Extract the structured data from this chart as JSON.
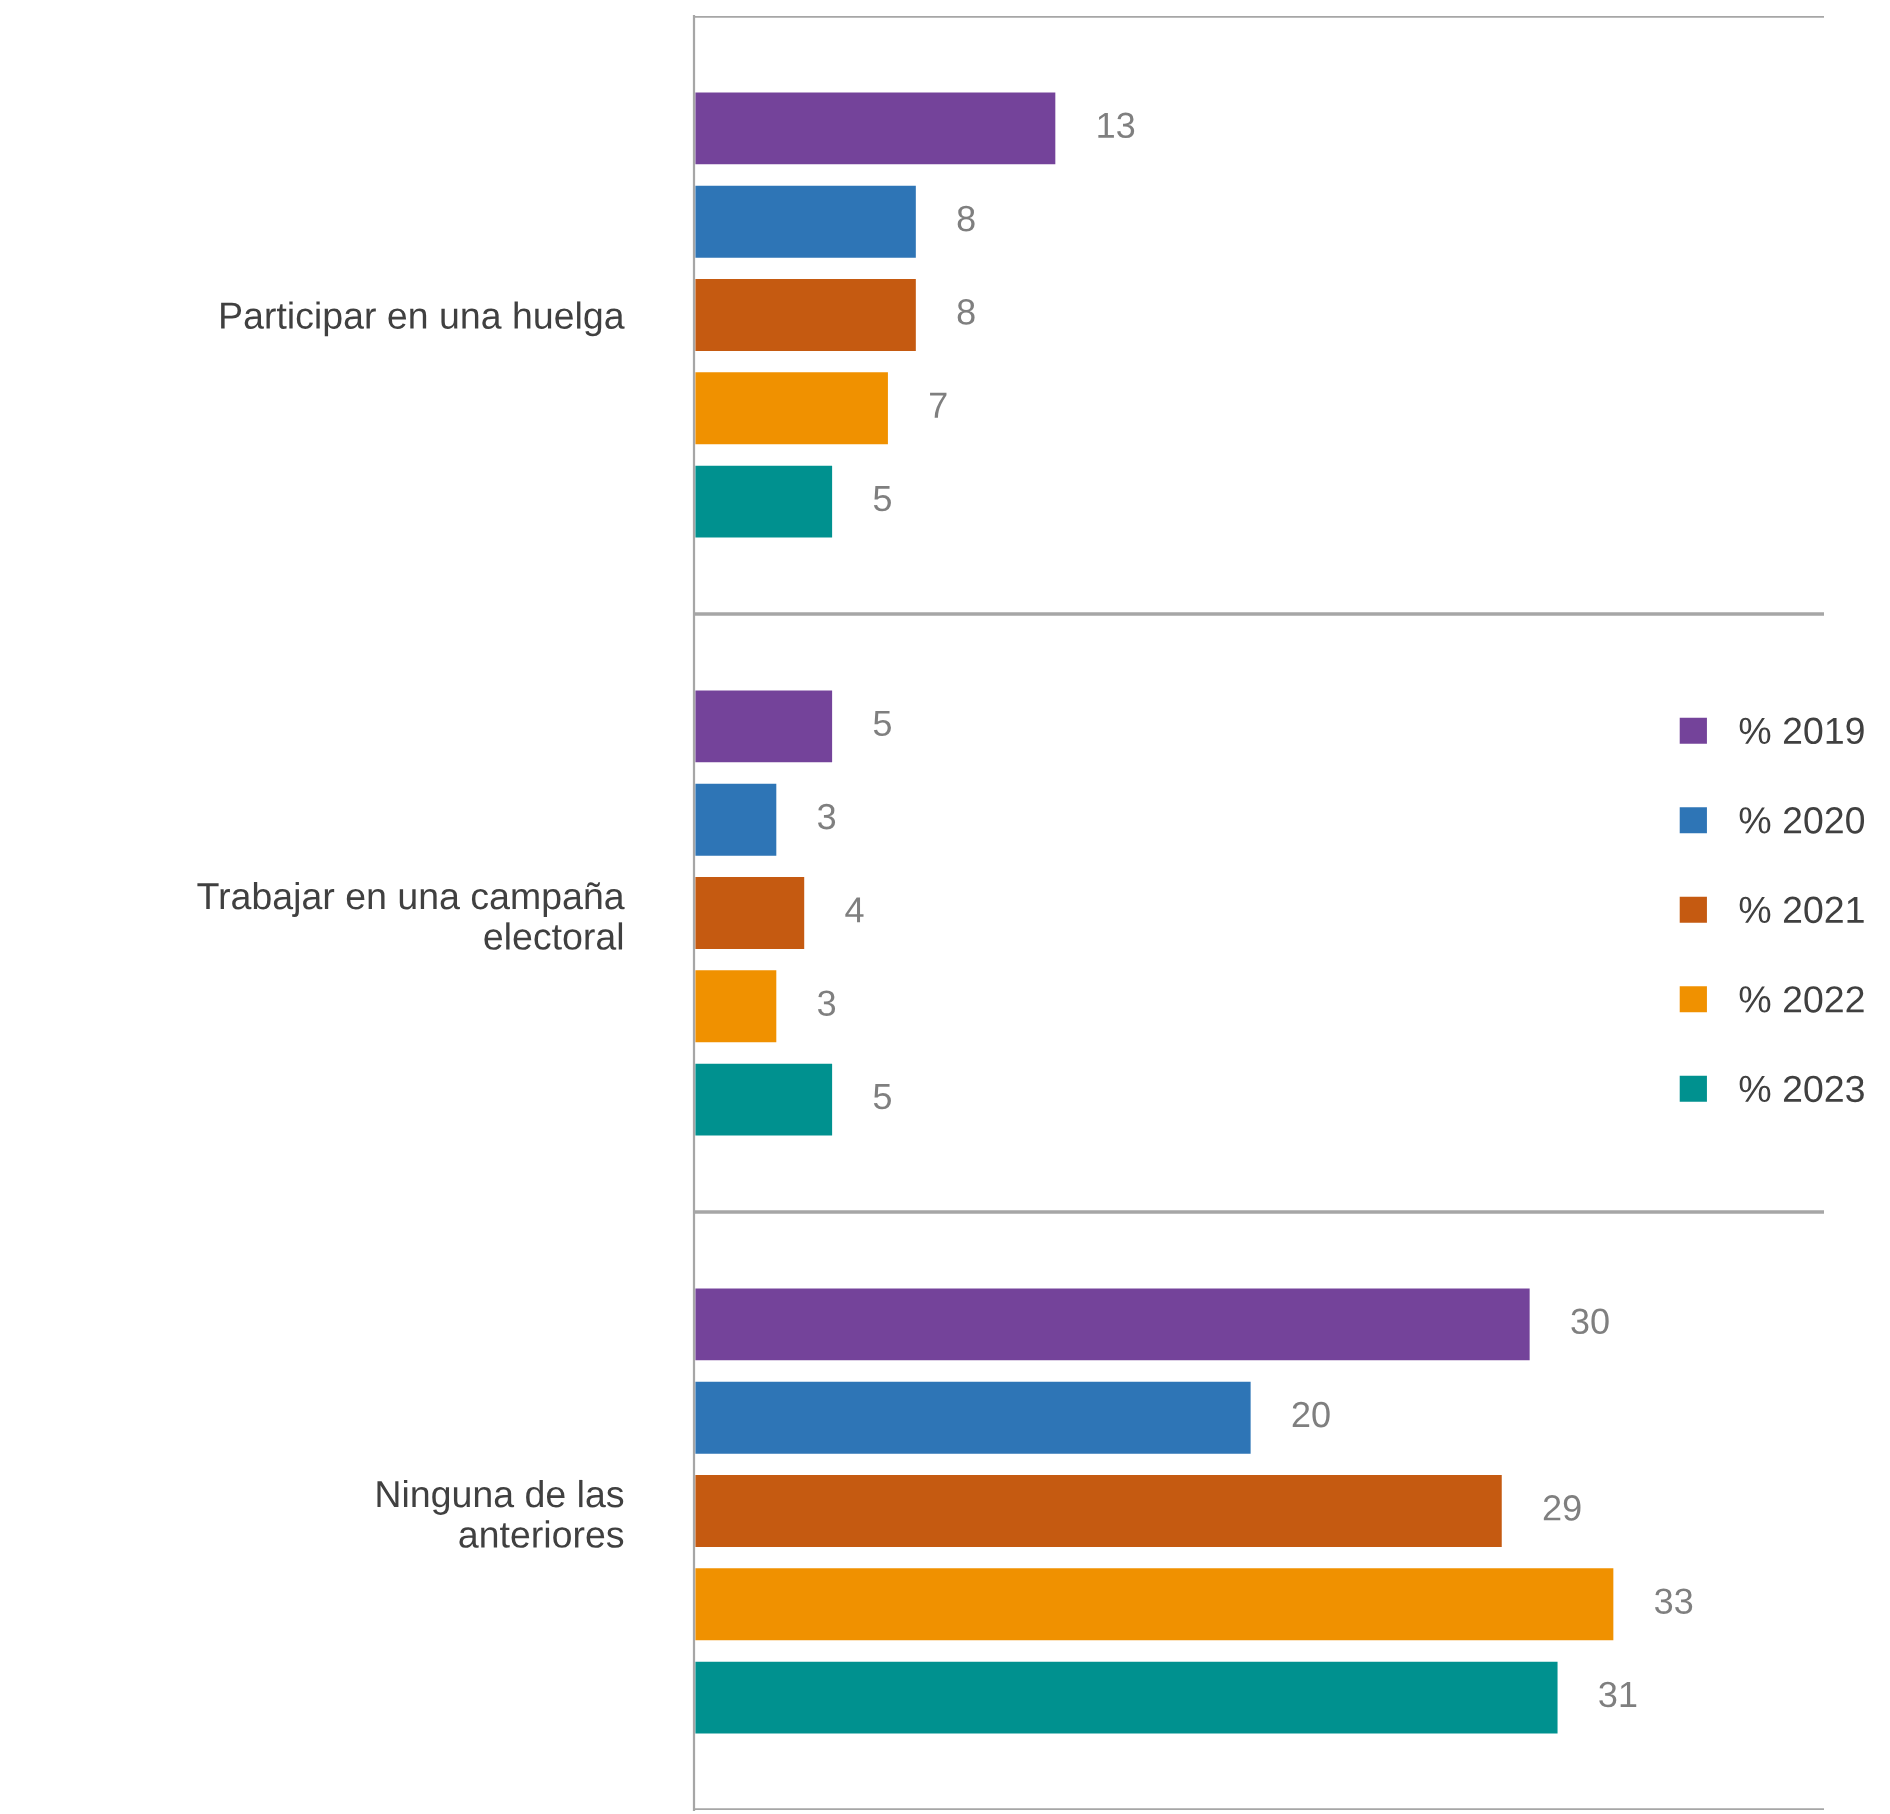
{
  "chart_data": {
    "type": "bar",
    "orientation": "horizontal",
    "categories": [
      "Participar en una huelga",
      "Trabajar en una campaña electoral",
      "Ninguna de las anteriores"
    ],
    "series": [
      {
        "name": "% 2019",
        "color": "#74439a",
        "values": [
          13,
          5,
          30
        ]
      },
      {
        "name": "% 2020",
        "color": "#2e75b6",
        "values": [
          8,
          3,
          20
        ]
      },
      {
        "name": "% 2021",
        "color": "#c55a11",
        "values": [
          8,
          4,
          29
        ]
      },
      {
        "name": "% 2022",
        "color": "#f09100",
        "values": [
          7,
          3,
          33
        ]
      },
      {
        "name": "% 2023",
        "color": "#00918f",
        "values": [
          5,
          5,
          31
        ]
      }
    ],
    "xlim": [
      0,
      40.5
    ],
    "data_labels": true,
    "grid": "y",
    "legend": "right",
    "tick_labels": "y"
  }
}
